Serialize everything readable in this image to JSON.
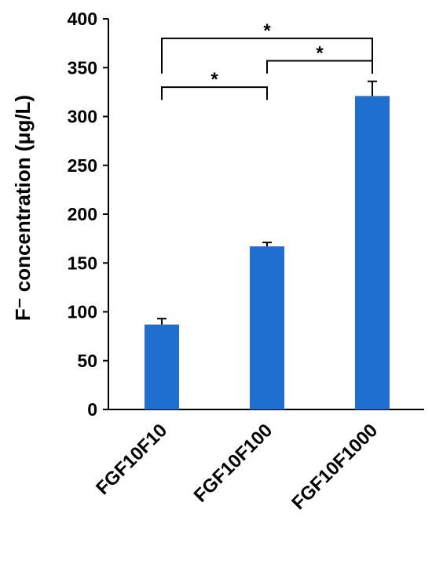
{
  "chart_data": {
    "type": "bar",
    "categories": [
      "FGF10F10",
      "FGF10F100",
      "FGF10F1000"
    ],
    "values": [
      87,
      167,
      321
    ],
    "errors": [
      6,
      4,
      15
    ],
    "ylabel": "F⁻ concentration (μg/L)",
    "ylim": [
      0,
      400
    ],
    "yticks": [
      0,
      50,
      100,
      150,
      200,
      250,
      300,
      350,
      400
    ],
    "bar_color": "#1f6fd1",
    "grid": false,
    "significance": [
      {
        "from": 0,
        "to": 1,
        "label": "*"
      },
      {
        "from": 1,
        "to": 2,
        "label": "*"
      },
      {
        "from": 0,
        "to": 2,
        "label": "*"
      }
    ]
  }
}
